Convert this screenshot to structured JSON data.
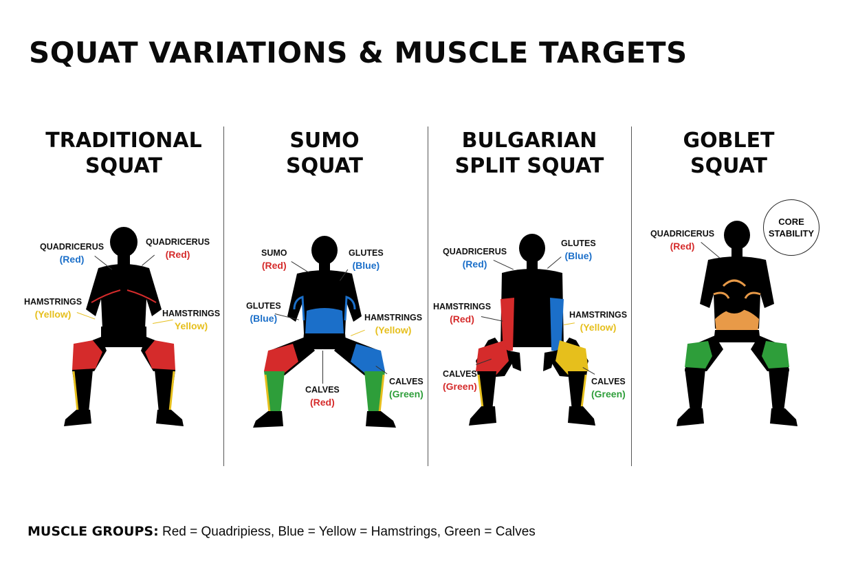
{
  "title": "SQUAT VARIATIONS & MUSCLE TARGETS",
  "colors": {
    "red": "#d52b2b",
    "blue": "#1b6fc9",
    "yellow": "#e6bf1c",
    "green": "#2e9e3a",
    "orange": "#e89a48",
    "body": "#000000"
  },
  "panels": [
    {
      "title_line1": "TRADITIONAL",
      "title_line2": "SQUAT",
      "labels": {
        "quad_left": {
          "name": "QUADRICERUS",
          "color": "(Red)"
        },
        "quad_right": {
          "name": "QUADRICERUS",
          "color": "(Red)"
        },
        "ham_left": {
          "name": "HAMSTRINGS",
          "color": "(Yellow)"
        },
        "ham_right": {
          "name": "HAMSTRINGS",
          "color": "Yellow)"
        }
      }
    },
    {
      "title_line1": "SUMO",
      "title_line2": "SQUAT",
      "labels": {
        "sumo": {
          "name": "SUMO",
          "color": "(Red)"
        },
        "glutes_top": {
          "name": "GLUTES",
          "color": "(Blue)"
        },
        "glutes_left": {
          "name": "GLUTES",
          "color": "(Blue)"
        },
        "hamstrings": {
          "name": "HAMSTRINGS",
          "color": "(Yellow)"
        },
        "calves_center": {
          "name": "CALVES",
          "color": "(Red)"
        },
        "calves_right": {
          "name": "CALVES",
          "color": "(Green)"
        }
      }
    },
    {
      "title_line1": "BULGARIAN",
      "title_line2": "SPLIT SQUAT",
      "labels": {
        "quad": {
          "name": "QUADRICERUS",
          "color": "(Red)"
        },
        "glutes": {
          "name": "GLUTES",
          "color": "(Blue)"
        },
        "ham_left": {
          "name": "HAMSTRINGS",
          "color": "(Red)"
        },
        "ham_right": {
          "name": "HAMSTRINGS",
          "color": "(Yellow)"
        },
        "calves_left": {
          "name": "CALVES",
          "color": "(Green)"
        },
        "calves_right": {
          "name": "CALVES",
          "color": "(Green)"
        }
      }
    },
    {
      "title_line1": "GOBLET",
      "title_line2": "SQUAT",
      "labels": {
        "quad": {
          "name": "QUADRICERUS",
          "color": "(Red)"
        }
      },
      "badge_line1": "CORE",
      "badge_line2": "STABILITY"
    }
  ],
  "legend": {
    "lead": "MUSCLE GROUPS:",
    "text": "Red = Quadripiess, Blue = Yellow = Hamstrings, Green = Calves"
  }
}
